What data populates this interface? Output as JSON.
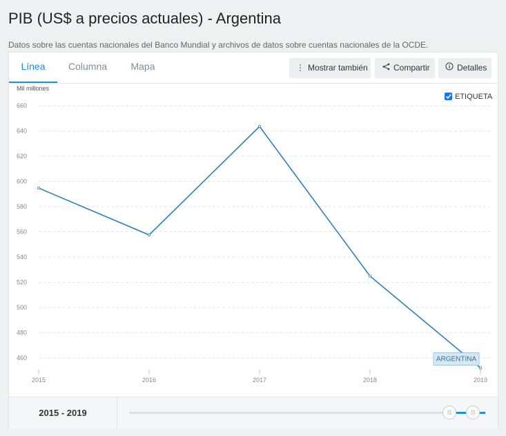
{
  "page": {
    "title": "PIB (US$ a precios actuales) - Argentina",
    "subtitle": "Datos sobre las cuentas nacionales del Banco Mundial y archivos de datos sobre cuentas nacionales de la OCDE."
  },
  "tabs": [
    {
      "label": "Línea",
      "active": true
    },
    {
      "label": "Columna",
      "active": false
    },
    {
      "label": "Mapa",
      "active": false
    }
  ],
  "toolbar": {
    "mostrar_label": "Mostrar también",
    "mostrar_icon": "vertical-dots-icon",
    "compartir_label": "Compartir",
    "compartir_icon": "share-icon",
    "detalles_label": "Detalles",
    "detalles_icon": "info-icon"
  },
  "label_toggle": {
    "label": "ETIQUETA",
    "checked": true
  },
  "chart_data": {
    "type": "line",
    "ylabel": "Mil millones",
    "x": [
      2015,
      2016,
      2017,
      2018,
      2019
    ],
    "series": [
      {
        "name": "ARGENTINA",
        "values": [
          594.7,
          557.5,
          643.6,
          524.8,
          451.9
        ]
      }
    ],
    "ylim": [
      450,
      665
    ],
    "yticks": [
      460,
      480,
      500,
      520,
      540,
      560,
      580,
      600,
      620,
      640,
      660
    ],
    "grid": true,
    "line_color": "#2c7fb8"
  },
  "range": {
    "label": "2015 - 2019",
    "start": 2015,
    "end": 2019,
    "min_year": 1960,
    "max_year": 2019
  }
}
